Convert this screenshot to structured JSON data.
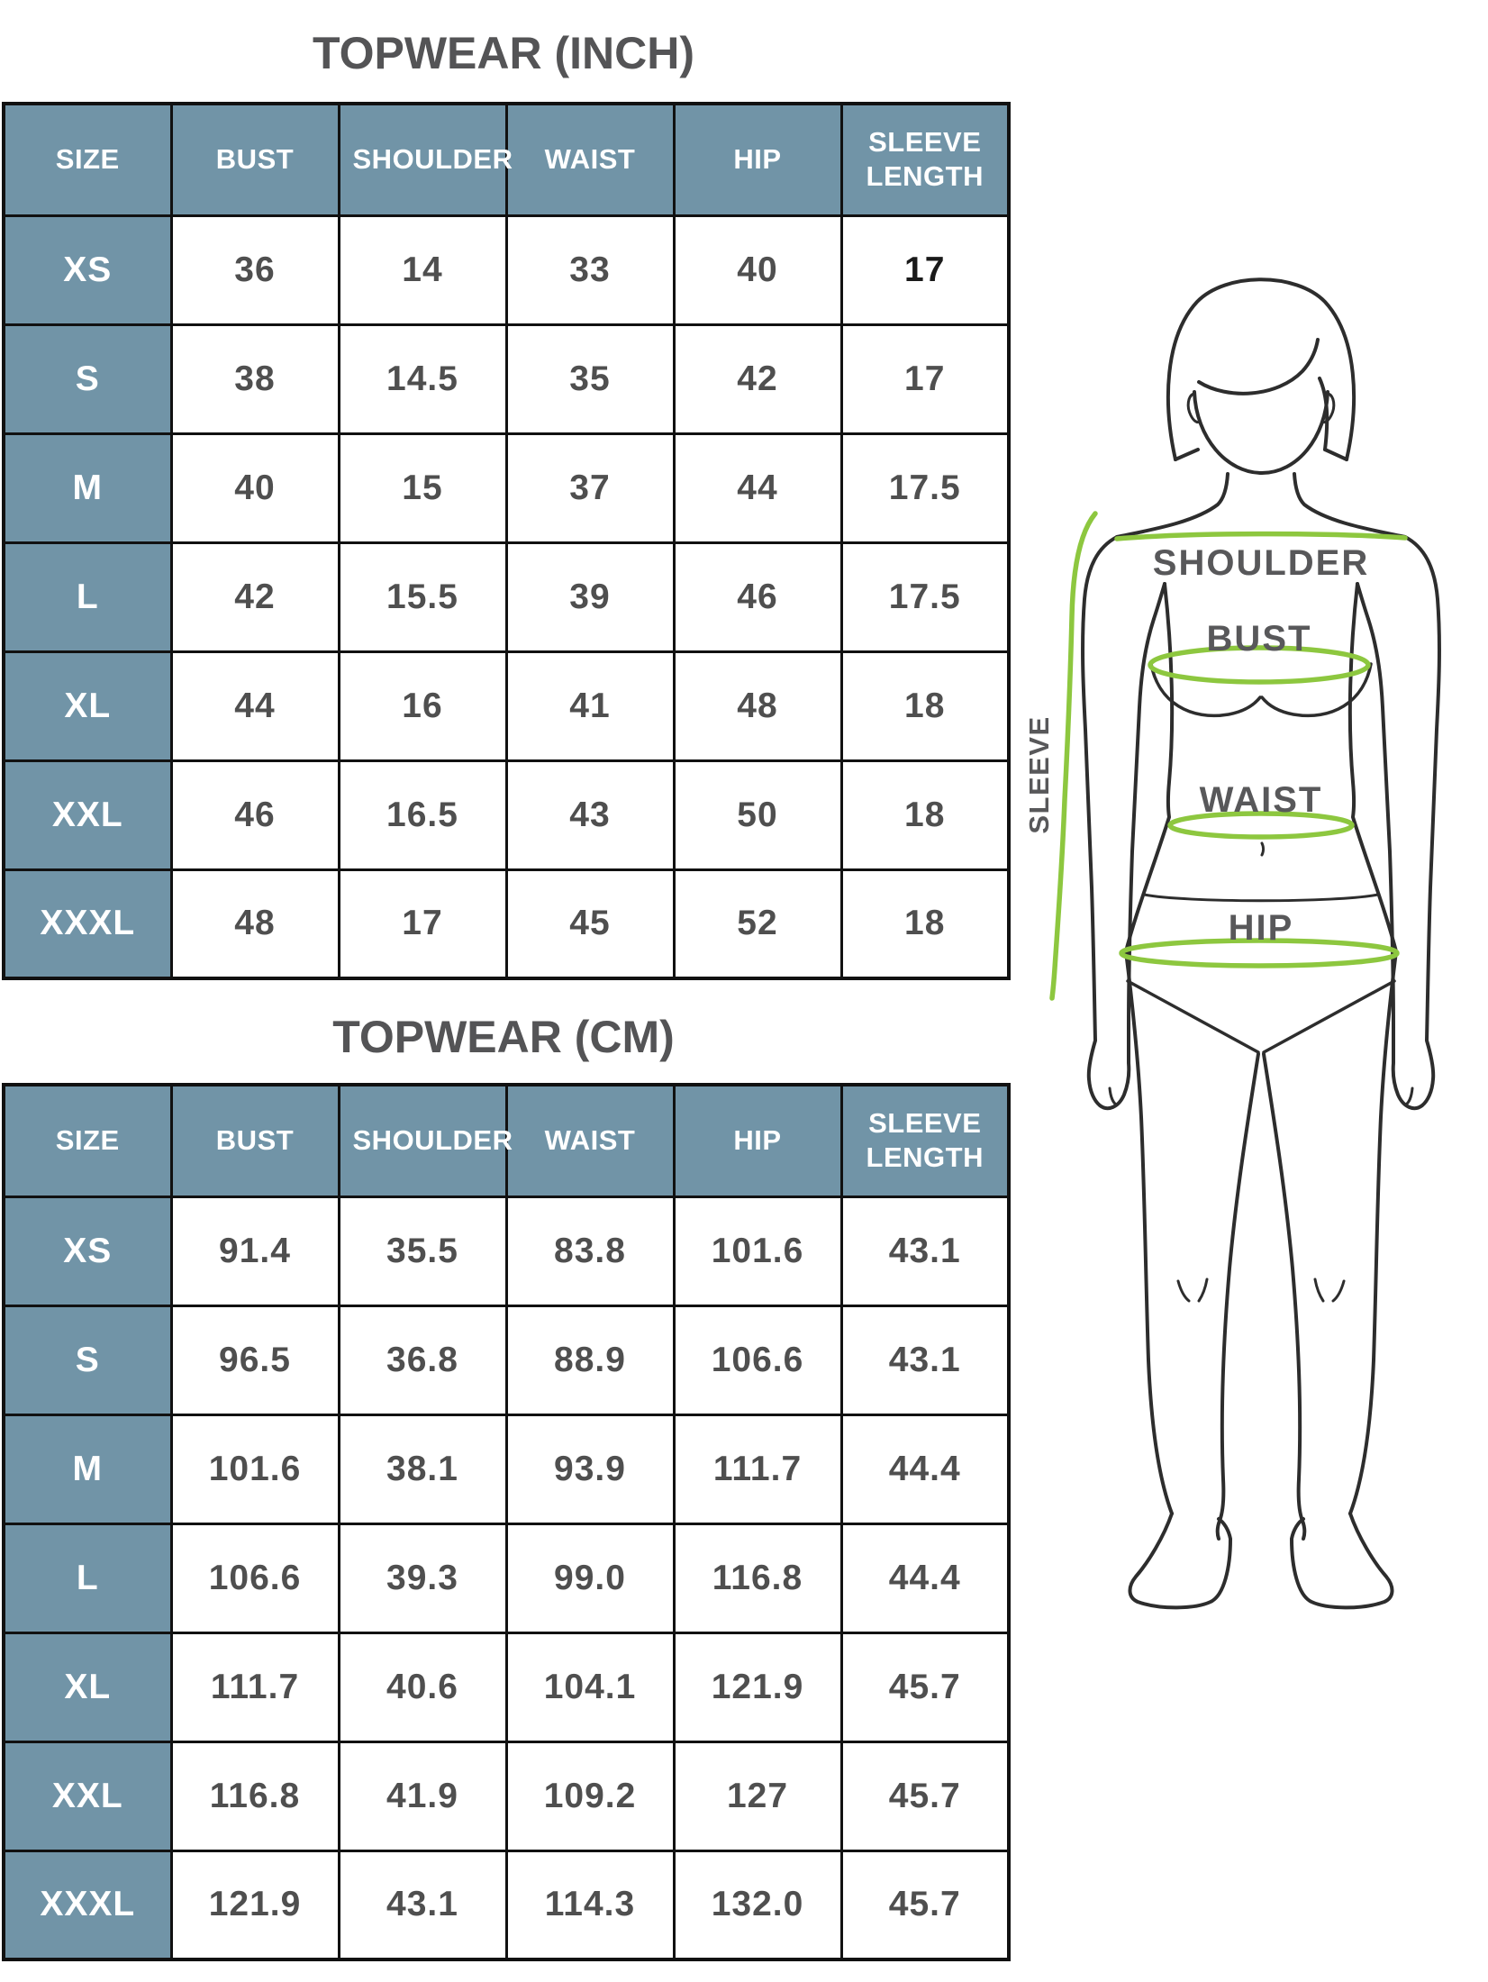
{
  "sections": [
    {
      "title": "TOPWEAR (INCH)",
      "columns": [
        "SIZE",
        "BUST",
        "SHOULDER",
        "WAIST",
        "HIP",
        "SLEEVE LENGTH"
      ],
      "rows": [
        [
          "XS",
          "36",
          "14",
          "33",
          "40",
          "17"
        ],
        [
          "S",
          "38",
          "14.5",
          "35",
          "42",
          "17"
        ],
        [
          "M",
          "40",
          "15",
          "37",
          "44",
          "17.5"
        ],
        [
          "L",
          "42",
          "15.5",
          "39",
          "46",
          "17.5"
        ],
        [
          "XL",
          "44",
          "16",
          "41",
          "48",
          "18"
        ],
        [
          "XXL",
          "46",
          "16.5",
          "43",
          "50",
          "18"
        ],
        [
          "XXXL",
          "48",
          "17",
          "45",
          "52",
          "18"
        ]
      ],
      "emphasis": {
        "row": 0,
        "col": 5
      }
    },
    {
      "title": "TOPWEAR (CM)",
      "columns": [
        "SIZE",
        "BUST",
        "SHOULDER",
        "WAIST",
        "HIP",
        "SLEEVE LENGTH"
      ],
      "rows": [
        [
          "XS",
          "91.4",
          "35.5",
          "83.8",
          "101.6",
          "43.1"
        ],
        [
          "S",
          "96.5",
          "36.8",
          "88.9",
          "106.6",
          "43.1"
        ],
        [
          "M",
          "101.6",
          "38.1",
          "93.9",
          "111.7",
          "44.4"
        ],
        [
          "L",
          "106.6",
          "39.3",
          "99.0",
          "116.8",
          "44.4"
        ],
        [
          "XL",
          "111.7",
          "40.6",
          "104.1",
          "121.9",
          "45.7"
        ],
        [
          "XXL",
          "116.8",
          "41.9",
          "109.2",
          "127",
          "45.7"
        ],
        [
          "XXXL",
          "121.9",
          "43.1",
          "114.3",
          "132.0",
          "45.7"
        ]
      ]
    }
  ],
  "figure": {
    "labels": {
      "shoulder": "SHOULDER",
      "bust": "BUST",
      "waist": "WAIST",
      "hip": "HIP",
      "sleeve": "SLEEVE"
    }
  },
  "colors": {
    "header_bg": "#7194a7",
    "header_text": "#ffffff",
    "measure_green": "#8dc73f",
    "table_border": "#111111",
    "value_text": "#4f4f4f",
    "emphasis_text": "#1a1a1a",
    "title_text": "#545456",
    "figure_outline": "#2d2d2d",
    "figure_label_text": "#58585a"
  }
}
